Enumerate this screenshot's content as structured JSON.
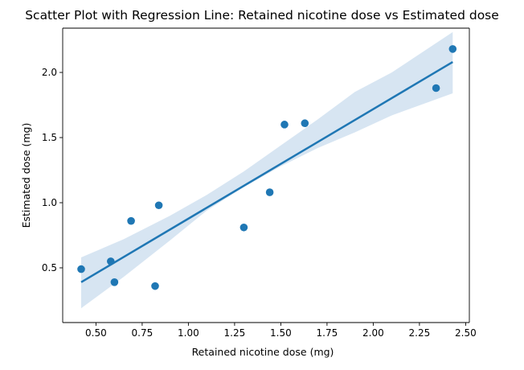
{
  "chart_data": {
    "type": "scatter",
    "title": "Scatter Plot with Regression Line: Retained nicotine dose vs Estimated dose",
    "xlabel": "Retained nicotine dose (mg)",
    "ylabel": "Estimated dose (mg)",
    "xlim": [
      0.32,
      2.52
    ],
    "ylim": [
      0.08,
      2.34
    ],
    "xticks": [
      0.5,
      0.75,
      1.0,
      1.25,
      1.5,
      1.75,
      2.0,
      2.25,
      2.5
    ],
    "xtick_labels": [
      "0.50",
      "0.75",
      "1.00",
      "1.25",
      "1.50",
      "1.75",
      "2.00",
      "2.25",
      "2.50"
    ],
    "yticks": [
      0.5,
      1.0,
      1.5,
      2.0
    ],
    "ytick_labels": [
      "0.5",
      "1.0",
      "1.5",
      "2.0"
    ],
    "grid": false,
    "legend": "none",
    "point_color": "#1f77b4",
    "line_color": "#1f77b4",
    "band_color": "#c9dcee",
    "points": [
      {
        "x": 0.42,
        "y": 0.49
      },
      {
        "x": 0.58,
        "y": 0.55
      },
      {
        "x": 0.6,
        "y": 0.39
      },
      {
        "x": 0.69,
        "y": 0.86
      },
      {
        "x": 0.82,
        "y": 0.36
      },
      {
        "x": 0.84,
        "y": 0.98
      },
      {
        "x": 1.3,
        "y": 0.81
      },
      {
        "x": 1.44,
        "y": 1.08
      },
      {
        "x": 1.52,
        "y": 1.6
      },
      {
        "x": 1.63,
        "y": 1.61
      },
      {
        "x": 2.34,
        "y": 1.88
      },
      {
        "x": 2.43,
        "y": 2.18
      }
    ],
    "regression_line": {
      "x": [
        0.42,
        2.43
      ],
      "y": [
        0.39,
        2.08
      ]
    },
    "confidence_band": {
      "x": [
        0.42,
        0.65,
        0.9,
        1.1,
        1.3,
        1.5,
        1.7,
        1.9,
        2.1,
        2.43
      ],
      "lower": [
        0.19,
        0.43,
        0.71,
        0.94,
        1.12,
        1.28,
        1.42,
        1.54,
        1.67,
        1.84
      ],
      "upper": [
        0.58,
        0.72,
        0.9,
        1.06,
        1.24,
        1.44,
        1.64,
        1.85,
        2.0,
        2.31
      ]
    }
  }
}
